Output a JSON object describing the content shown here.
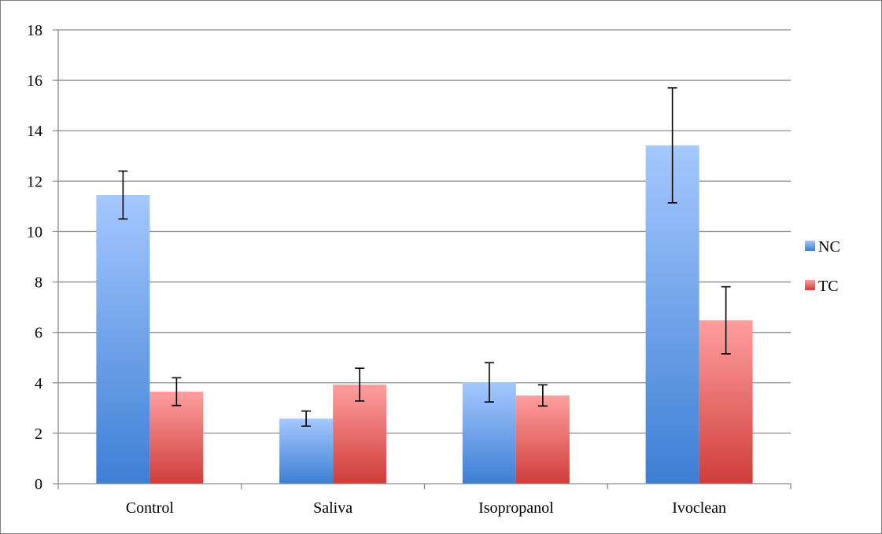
{
  "chart_data": {
    "type": "bar",
    "title": "",
    "xlabel": "",
    "ylabel": "",
    "categories": [
      "Control",
      "Saliva",
      "Isopropanol",
      "Ivoclean"
    ],
    "series": [
      {
        "name": "NC",
        "values": [
          11.45,
          2.58,
          4.02,
          13.42
        ],
        "error": [
          0.95,
          0.3,
          0.78,
          2.28
        ],
        "color_top": "#a5c8ff",
        "color_bottom": "#3d7fd4"
      },
      {
        "name": "TC",
        "values": [
          3.65,
          3.93,
          3.5,
          6.48
        ],
        "error": [
          0.55,
          0.65,
          0.42,
          1.33
        ],
        "color_top": "#ff9f9f",
        "color_bottom": "#cf3d3a"
      }
    ],
    "ylim": [
      0,
      18
    ],
    "yticks": [
      "0",
      "2",
      "4",
      "6",
      "8",
      "10",
      "12",
      "14",
      "16",
      "18"
    ],
    "grid": true,
    "legend_position": "right"
  }
}
